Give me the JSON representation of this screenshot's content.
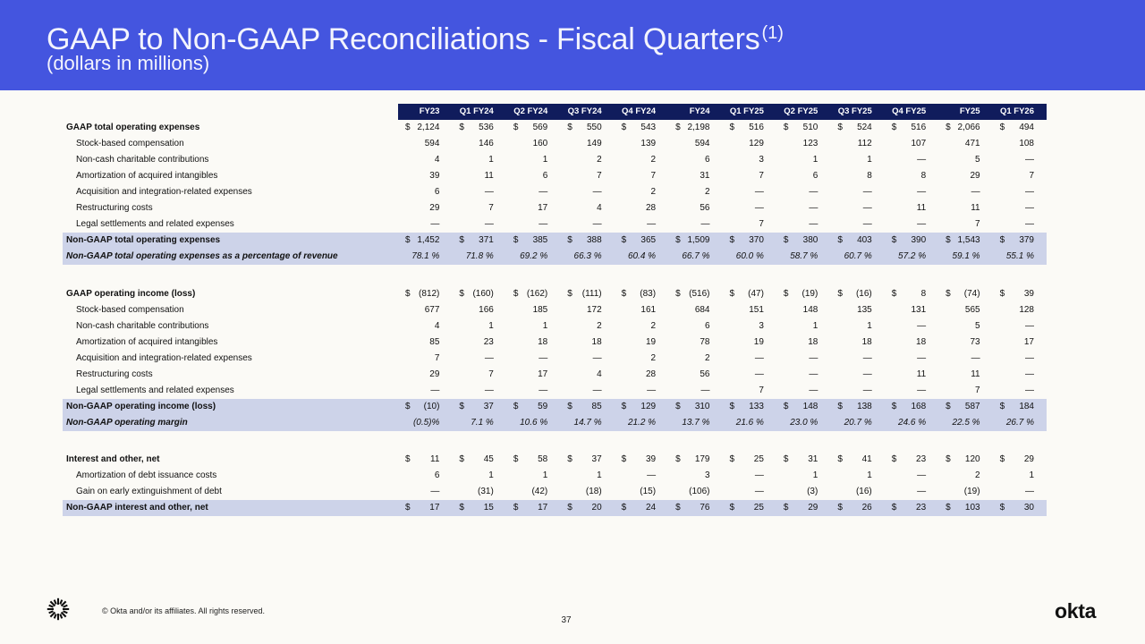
{
  "header": {
    "title": "GAAP to Non-GAAP Reconciliations - Fiscal Quarters",
    "title_superscript": "(1)",
    "subtitle": "(dollars in millions)"
  },
  "colors": {
    "header_band": "#4455DF",
    "title_text": "#F3F4FD",
    "table_header_bg": "#101C5C",
    "table_header_text": "#FFFFFF",
    "highlight_row": "#CDD3E9",
    "page_background": "#FBFAF6",
    "body_text": "#111111"
  },
  "currency_symbol": "$",
  "table": {
    "columns": [
      "FY23",
      "Q1 FY24",
      "Q2 FY24",
      "Q3 FY24",
      "Q4 FY24",
      "FY24",
      "Q1 FY25",
      "Q2 FY25",
      "Q3 FY25",
      "Q4 FY25",
      "FY25",
      "Q1 FY26"
    ],
    "sections": [
      {
        "rows": [
          {
            "label": "GAAP total operating expenses",
            "kind": "gaap",
            "dollar": true,
            "values": [
              "2,124",
              "536",
              "569",
              "550",
              "543",
              "2,198",
              "516",
              "510",
              "524",
              "516",
              "2,066",
              "494"
            ]
          },
          {
            "label": "Stock-based compensation",
            "kind": "adjustment",
            "dollar": false,
            "values": [
              "594",
              "146",
              "160",
              "149",
              "139",
              "594",
              "129",
              "123",
              "112",
              "107",
              "471",
              "108"
            ]
          },
          {
            "label": "Non-cash charitable contributions",
            "kind": "adjustment",
            "dollar": false,
            "values": [
              "4",
              "1",
              "1",
              "2",
              "2",
              "6",
              "3",
              "1",
              "1",
              "—",
              "5",
              "—"
            ]
          },
          {
            "label": "Amortization of acquired intangibles",
            "kind": "adjustment",
            "dollar": false,
            "values": [
              "39",
              "11",
              "6",
              "7",
              "7",
              "31",
              "7",
              "6",
              "8",
              "8",
              "29",
              "7"
            ]
          },
          {
            "label": "Acquisition and integration-related expenses",
            "kind": "adjustment",
            "dollar": false,
            "values": [
              "6",
              "—",
              "—",
              "—",
              "2",
              "2",
              "—",
              "—",
              "—",
              "—",
              "—",
              "—"
            ]
          },
          {
            "label": "Restructuring costs",
            "kind": "adjustment",
            "dollar": false,
            "values": [
              "29",
              "7",
              "17",
              "4",
              "28",
              "56",
              "—",
              "—",
              "—",
              "11",
              "11",
              "—"
            ]
          },
          {
            "label": "Legal settlements and related expenses",
            "kind": "adjustment",
            "dollar": false,
            "values": [
              "—",
              "—",
              "—",
              "—",
              "—",
              "—",
              "7",
              "—",
              "—",
              "—",
              "7",
              "—"
            ]
          },
          {
            "label": "Non-GAAP total operating expenses",
            "kind": "nongaap",
            "dollar": true,
            "values": [
              "1,452",
              "371",
              "385",
              "388",
              "365",
              "1,509",
              "370",
              "380",
              "403",
              "390",
              "1,543",
              "379"
            ]
          },
          {
            "label": "Non-GAAP total operating expenses as a percentage of revenue",
            "kind": "ratio",
            "dollar": false,
            "values": [
              "78.1 %",
              "71.8 %",
              "69.2 %",
              "66.3 %",
              "60.4 %",
              "66.7 %",
              "60.0 %",
              "58.7 %",
              "60.7 %",
              "57.2 %",
              "59.1 %",
              "55.1 %"
            ]
          }
        ]
      },
      {
        "rows": [
          {
            "label": "GAAP operating income (loss)",
            "kind": "gaap",
            "dollar": true,
            "values": [
              "(812)",
              "(160)",
              "(162)",
              "(111)",
              "(83)",
              "(516)",
              "(47)",
              "(19)",
              "(16)",
              "8",
              "(74)",
              "39"
            ]
          },
          {
            "label": "Stock-based compensation",
            "kind": "adjustment",
            "dollar": false,
            "values": [
              "677",
              "166",
              "185",
              "172",
              "161",
              "684",
              "151",
              "148",
              "135",
              "131",
              "565",
              "128"
            ]
          },
          {
            "label": "Non-cash charitable contributions",
            "kind": "adjustment",
            "dollar": false,
            "values": [
              "4",
              "1",
              "1",
              "2",
              "2",
              "6",
              "3",
              "1",
              "1",
              "—",
              "5",
              "—"
            ]
          },
          {
            "label": "Amortization of acquired intangibles",
            "kind": "adjustment",
            "dollar": false,
            "values": [
              "85",
              "23",
              "18",
              "18",
              "19",
              "78",
              "19",
              "18",
              "18",
              "18",
              "73",
              "17"
            ]
          },
          {
            "label": "Acquisition and integration-related expenses",
            "kind": "adjustment",
            "dollar": false,
            "values": [
              "7",
              "—",
              "—",
              "—",
              "2",
              "2",
              "—",
              "—",
              "—",
              "—",
              "—",
              "—"
            ]
          },
          {
            "label": "Restructuring costs",
            "kind": "adjustment",
            "dollar": false,
            "values": [
              "29",
              "7",
              "17",
              "4",
              "28",
              "56",
              "—",
              "—",
              "—",
              "11",
              "11",
              "—"
            ]
          },
          {
            "label": "Legal settlements and related expenses",
            "kind": "adjustment",
            "dollar": false,
            "values": [
              "—",
              "—",
              "—",
              "—",
              "—",
              "—",
              "7",
              "—",
              "—",
              "—",
              "7",
              "—"
            ]
          },
          {
            "label": "Non-GAAP operating income (loss)",
            "kind": "nongaap",
            "dollar": true,
            "values": [
              "(10)",
              "37",
              "59",
              "85",
              "129",
              "310",
              "133",
              "148",
              "138",
              "168",
              "587",
              "184"
            ]
          },
          {
            "label": "Non-GAAP operating margin",
            "kind": "ratio",
            "dollar": false,
            "values": [
              "(0.5)%",
              "7.1 %",
              "10.6 %",
              "14.7 %",
              "21.2 %",
              "13.7 %",
              "21.6 %",
              "23.0 %",
              "20.7 %",
              "24.6 %",
              "22.5 %",
              "26.7 %"
            ]
          }
        ]
      },
      {
        "rows": [
          {
            "label": "Interest and other, net",
            "kind": "gaap",
            "dollar": true,
            "values": [
              "11",
              "45",
              "58",
              "37",
              "39",
              "179",
              "25",
              "31",
              "41",
              "23",
              "120",
              "29"
            ]
          },
          {
            "label": "Amortization of debt issuance costs",
            "kind": "adjustment",
            "dollar": false,
            "values": [
              "6",
              "1",
              "1",
              "1",
              "—",
              "3",
              "—",
              "1",
              "1",
              "—",
              "2",
              "1"
            ]
          },
          {
            "label": "Gain on early extinguishment of debt",
            "kind": "adjustment",
            "dollar": false,
            "values": [
              "—",
              "(31)",
              "(42)",
              "(18)",
              "(15)",
              "(106)",
              "—",
              "(3)",
              "(16)",
              "—",
              "(19)",
              "—"
            ]
          },
          {
            "label": "Non-GAAP interest and other, net",
            "kind": "nongaap",
            "dollar": true,
            "values": [
              "17",
              "15",
              "17",
              "20",
              "24",
              "76",
              "25",
              "29",
              "26",
              "23",
              "103",
              "30"
            ]
          }
        ]
      }
    ]
  },
  "footer": {
    "logo_icon": "okta-aura-icon",
    "copyright": "© Okta and/or its affiliates. All rights reserved.",
    "page_number": "37",
    "wordmark": "okta"
  }
}
